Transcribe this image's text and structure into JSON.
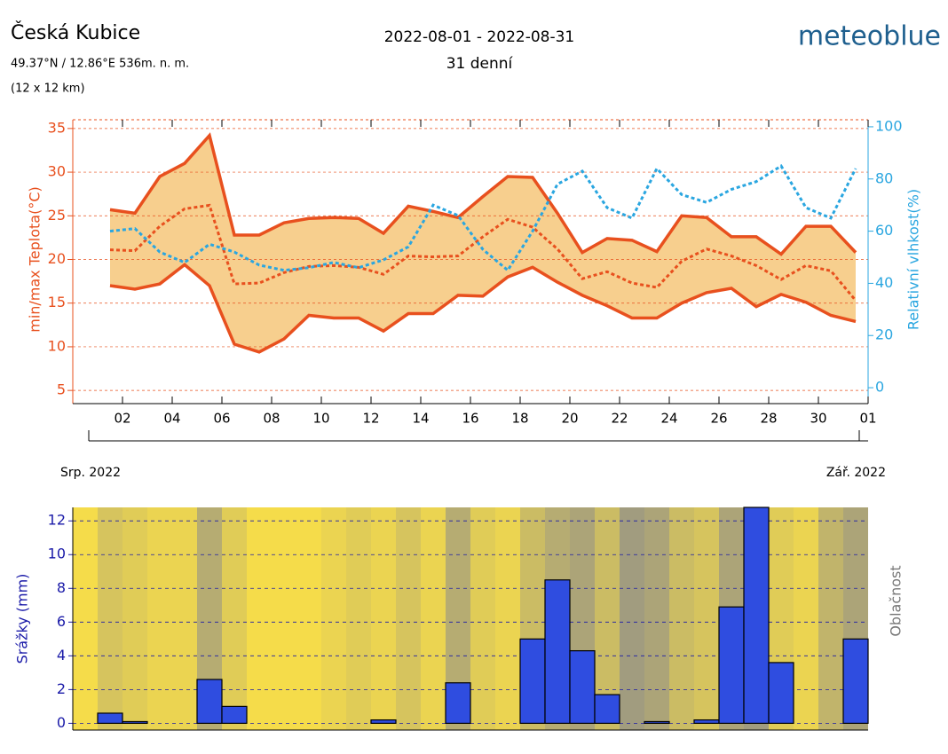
{
  "header": {
    "place": "Česká Kubice",
    "coords": "49.37°N / 12.86°E   536m. n. m.",
    "resolution": "(12 x 12 km)",
    "period": "2022-08-01 - 2022-08-31",
    "days": "31 denní",
    "logo": "meteoblue"
  },
  "chart_data": [
    {
      "type": "line",
      "ylabel": "min/max Teplota(°C)",
      "y2label": "Relativní vlhkost(%)",
      "x": [
        1.5,
        2.5,
        3.5,
        4.5,
        5.5,
        6.5,
        7.5,
        8.5,
        9.5,
        10.5,
        11.5,
        12.5,
        13.5,
        14.5,
        15.5,
        16.5,
        17.5,
        18.5,
        19.5,
        20.5,
        21.5,
        22.5,
        23.5,
        24.5,
        25.5,
        26.5,
        27.5,
        28.5,
        29.5,
        30.5,
        31.5
      ],
      "xlim": [
        0,
        32
      ],
      "xticks": [
        {
          "value": 2,
          "label": "02"
        },
        {
          "value": 4,
          "label": "04"
        },
        {
          "value": 6,
          "label": "06"
        },
        {
          "value": 8,
          "label": "08"
        },
        10,
        12,
        14,
        16,
        18,
        20,
        22,
        24,
        26,
        28,
        30,
        {
          "value": 32,
          "label": "01"
        }
      ],
      "months": [
        {
          "value": 1,
          "label": "Srp. 2022"
        },
        {
          "value": 32,
          "label": "Zář. 2022"
        }
      ],
      "ylim": [
        4,
        36
      ],
      "yticks": [
        5,
        10,
        15,
        20,
        25,
        30,
        35
      ],
      "ycolor": "#e8501e",
      "y2lim": [
        -4.4,
        102.7
      ],
      "y2ticks": [
        0,
        20,
        40,
        60,
        80,
        100
      ],
      "y2color": "#2aa6e0",
      "grid": true,
      "band_color": "#f7cf8e",
      "series": [
        {
          "color": "#e8501e",
          "values": [
            25.7,
            25.3,
            29.5,
            31,
            34.2,
            22.8,
            22.8,
            24.2,
            24.7,
            24.8,
            24.7,
            23,
            26.1,
            25.5,
            24.8,
            27.2,
            29.5,
            29.4,
            25.3,
            20.8,
            22.4,
            22.2,
            20.9,
            25,
            24.8,
            22.6,
            22.6,
            20.6,
            23.8,
            23.8,
            20.8
          ]
        },
        {
          "color": "#e8501e",
          "values": [
            17,
            16.6,
            17.2,
            19.4,
            17,
            10.3,
            9.4,
            10.9,
            13.6,
            13.3,
            13.3,
            11.8,
            13.8,
            13.8,
            15.9,
            15.8,
            18,
            19.1,
            17.4,
            15.9,
            14.7,
            13.3,
            13.3,
            15,
            16.2,
            16.7,
            14.6,
            16,
            15.1,
            13.6,
            12.9
          ]
        },
        {
          "color": "#e8501e",
          "dashed": true,
          "values": [
            21.1,
            21,
            23.8,
            25.8,
            26.2,
            17.2,
            17.3,
            18.5,
            19.2,
            19.3,
            19.1,
            18.3,
            20.4,
            20.3,
            20.4,
            22.6,
            24.6,
            23.7,
            21.2,
            17.8,
            18.6,
            17.3,
            16.8,
            19.8,
            21.2,
            20.4,
            19.3,
            17.7,
            19.3,
            18.7,
            15.3
          ]
        },
        {
          "color": "#2aa6e0",
          "dashed": true,
          "axis": "y2",
          "values": [
            60,
            61,
            52,
            48,
            55,
            52,
            47,
            45,
            46,
            48,
            46,
            49,
            54,
            70,
            66,
            53,
            45,
            60,
            78,
            83,
            69,
            65,
            84,
            74,
            71,
            76,
            79,
            85,
            69,
            65,
            84
          ]
        }
      ]
    },
    {
      "type": "histogram",
      "ylabel": "Srážky (mm)",
      "y2label": "Oblačnost",
      "bins": [
        1,
        2,
        3,
        4,
        5,
        6,
        7,
        8,
        9,
        10,
        11,
        12,
        13,
        14,
        15,
        16,
        17,
        18,
        19,
        20,
        21,
        22,
        23,
        24,
        25,
        26,
        27,
        28,
        29,
        30,
        31,
        32
      ],
      "values": [
        0.6,
        0.1,
        0,
        0,
        2.6,
        1,
        0,
        0,
        0,
        0,
        0,
        0.2,
        0,
        0,
        2.4,
        0,
        0,
        5,
        8.5,
        4.3,
        1.7,
        0,
        0.1,
        0,
        0.2,
        6.9,
        12.8,
        3.6,
        0,
        0,
        5
      ],
      "cloud_cover": [
        30,
        20,
        10,
        10,
        60,
        20,
        0,
        0,
        0,
        10,
        20,
        10,
        30,
        10,
        60,
        20,
        10,
        40,
        60,
        70,
        40,
        80,
        70,
        40,
        30,
        70,
        80,
        20,
        10,
        50,
        70
      ],
      "xlim": [
        0,
        32
      ],
      "ylim": [
        -0.4,
        12.8
      ],
      "yticks": [
        0,
        2,
        4,
        6,
        8,
        10,
        12
      ],
      "color": "#2f4de0",
      "ycolor": "#1a1aa8",
      "clear_color": "#f5dc4a",
      "cloud_color": "#8c8c8c",
      "grid": true
    }
  ]
}
